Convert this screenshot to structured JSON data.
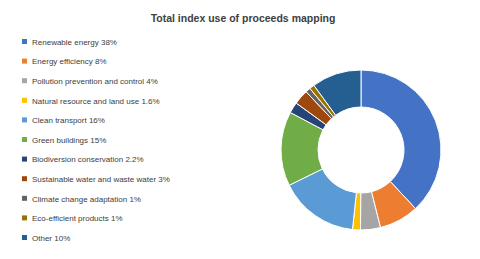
{
  "chart_data": {
    "type": "donut",
    "title": "Total index use of proceeds mapping",
    "categories": [
      "Renewable energy 38%",
      "Energy efficiency 8%",
      "Pollution prevention and control 4%",
      "Natural resource and land use 1.6%",
      "Clean transport 16%",
      "Green buildings 15%",
      "Biodiversion conservation 2.2%",
      "Sustainable water and waste water 3%",
      "Climate change adaptation 1%",
      "Eco-efficient products 1%",
      "Other 10%"
    ],
    "values": [
      38,
      8,
      4,
      1.6,
      16,
      15,
      2.2,
      3,
      1,
      1,
      10
    ],
    "colors": [
      "#4472c4",
      "#ed7d31",
      "#a5a5a5",
      "#ffc000",
      "#5b9bd5",
      "#70ad47",
      "#264478",
      "#9e480e",
      "#636363",
      "#997300",
      "#255e91"
    ],
    "legend": "left"
  }
}
